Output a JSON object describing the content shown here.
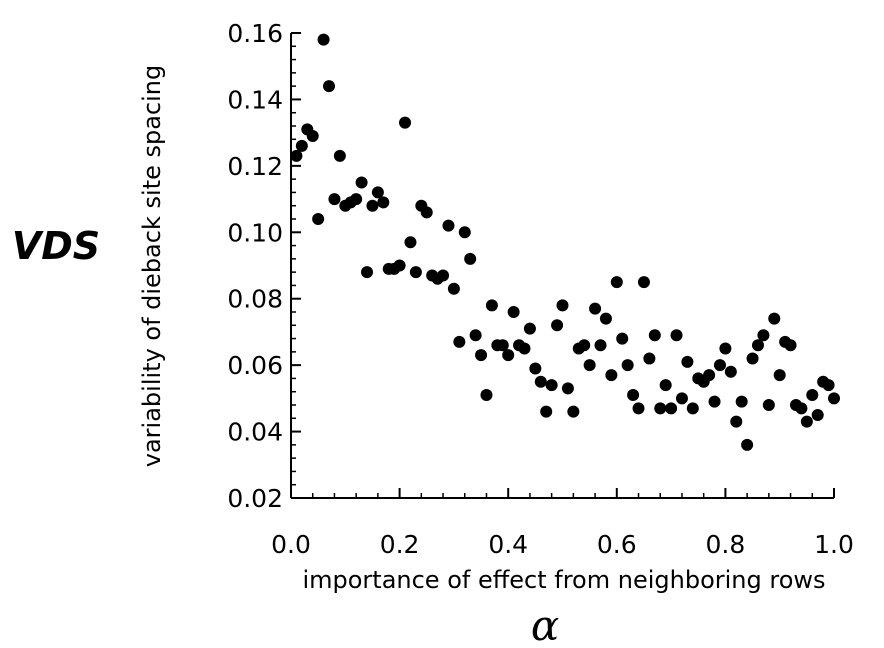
{
  "chart_data": {
    "type": "scatter",
    "title": "",
    "xlabel": "importance of effect from neighboring rows",
    "xsymbol": "α",
    "ylabel": "variability of dieback site spacing",
    "ysymbol": "VDS",
    "xlim": [
      0.0,
      1.0
    ],
    "ylim": [
      0.02,
      0.16
    ],
    "xticks": [
      "0.0",
      "0.2",
      "0.4",
      "0.6",
      "0.8",
      "1.0"
    ],
    "yticks": [
      "0.02",
      "0.04",
      "0.06",
      "0.08",
      "0.10",
      "0.12",
      "0.14",
      "0.16"
    ],
    "grid": false,
    "points": [
      [
        0.01,
        0.123
      ],
      [
        0.02,
        0.126
      ],
      [
        0.03,
        0.131
      ],
      [
        0.04,
        0.129
      ],
      [
        0.05,
        0.104
      ],
      [
        0.06,
        0.158
      ],
      [
        0.07,
        0.144
      ],
      [
        0.08,
        0.11
      ],
      [
        0.09,
        0.123
      ],
      [
        0.1,
        0.108
      ],
      [
        0.11,
        0.109
      ],
      [
        0.12,
        0.11
      ],
      [
        0.13,
        0.115
      ],
      [
        0.14,
        0.088
      ],
      [
        0.15,
        0.108
      ],
      [
        0.16,
        0.112
      ],
      [
        0.17,
        0.109
      ],
      [
        0.18,
        0.089
      ],
      [
        0.19,
        0.089
      ],
      [
        0.2,
        0.09
      ],
      [
        0.21,
        0.133
      ],
      [
        0.22,
        0.097
      ],
      [
        0.23,
        0.088
      ],
      [
        0.24,
        0.108
      ],
      [
        0.25,
        0.106
      ],
      [
        0.26,
        0.087
      ],
      [
        0.27,
        0.086
      ],
      [
        0.28,
        0.087
      ],
      [
        0.29,
        0.102
      ],
      [
        0.3,
        0.083
      ],
      [
        0.31,
        0.067
      ],
      [
        0.32,
        0.1
      ],
      [
        0.33,
        0.092
      ],
      [
        0.34,
        0.069
      ],
      [
        0.35,
        0.063
      ],
      [
        0.36,
        0.051
      ],
      [
        0.37,
        0.078
      ],
      [
        0.38,
        0.066
      ],
      [
        0.39,
        0.066
      ],
      [
        0.4,
        0.063
      ],
      [
        0.41,
        0.076
      ],
      [
        0.42,
        0.066
      ],
      [
        0.43,
        0.065
      ],
      [
        0.44,
        0.071
      ],
      [
        0.45,
        0.059
      ],
      [
        0.46,
        0.055
      ],
      [
        0.47,
        0.046
      ],
      [
        0.48,
        0.054
      ],
      [
        0.49,
        0.072
      ],
      [
        0.5,
        0.078
      ],
      [
        0.51,
        0.053
      ],
      [
        0.52,
        0.046
      ],
      [
        0.53,
        0.065
      ],
      [
        0.54,
        0.066
      ],
      [
        0.55,
        0.06
      ],
      [
        0.56,
        0.077
      ],
      [
        0.57,
        0.066
      ],
      [
        0.58,
        0.074
      ],
      [
        0.59,
        0.057
      ],
      [
        0.6,
        0.085
      ],
      [
        0.61,
        0.068
      ],
      [
        0.62,
        0.06
      ],
      [
        0.63,
        0.051
      ],
      [
        0.64,
        0.047
      ],
      [
        0.65,
        0.085
      ],
      [
        0.66,
        0.062
      ],
      [
        0.67,
        0.069
      ],
      [
        0.68,
        0.047
      ],
      [
        0.69,
        0.054
      ],
      [
        0.7,
        0.047
      ],
      [
        0.71,
        0.069
      ],
      [
        0.72,
        0.05
      ],
      [
        0.73,
        0.061
      ],
      [
        0.74,
        0.047
      ],
      [
        0.75,
        0.056
      ],
      [
        0.76,
        0.055
      ],
      [
        0.77,
        0.057
      ],
      [
        0.78,
        0.049
      ],
      [
        0.79,
        0.06
      ],
      [
        0.8,
        0.065
      ],
      [
        0.81,
        0.058
      ],
      [
        0.82,
        0.043
      ],
      [
        0.83,
        0.049
      ],
      [
        0.84,
        0.036
      ],
      [
        0.85,
        0.062
      ],
      [
        0.86,
        0.066
      ],
      [
        0.87,
        0.069
      ],
      [
        0.88,
        0.048
      ],
      [
        0.89,
        0.074
      ],
      [
        0.9,
        0.057
      ],
      [
        0.91,
        0.067
      ],
      [
        0.92,
        0.066
      ],
      [
        0.93,
        0.048
      ],
      [
        0.94,
        0.047
      ],
      [
        0.95,
        0.043
      ],
      [
        0.96,
        0.051
      ],
      [
        0.97,
        0.045
      ],
      [
        0.98,
        0.055
      ],
      [
        0.99,
        0.054
      ],
      [
        1.0,
        0.05
      ]
    ],
    "marker_color": "#000000"
  }
}
